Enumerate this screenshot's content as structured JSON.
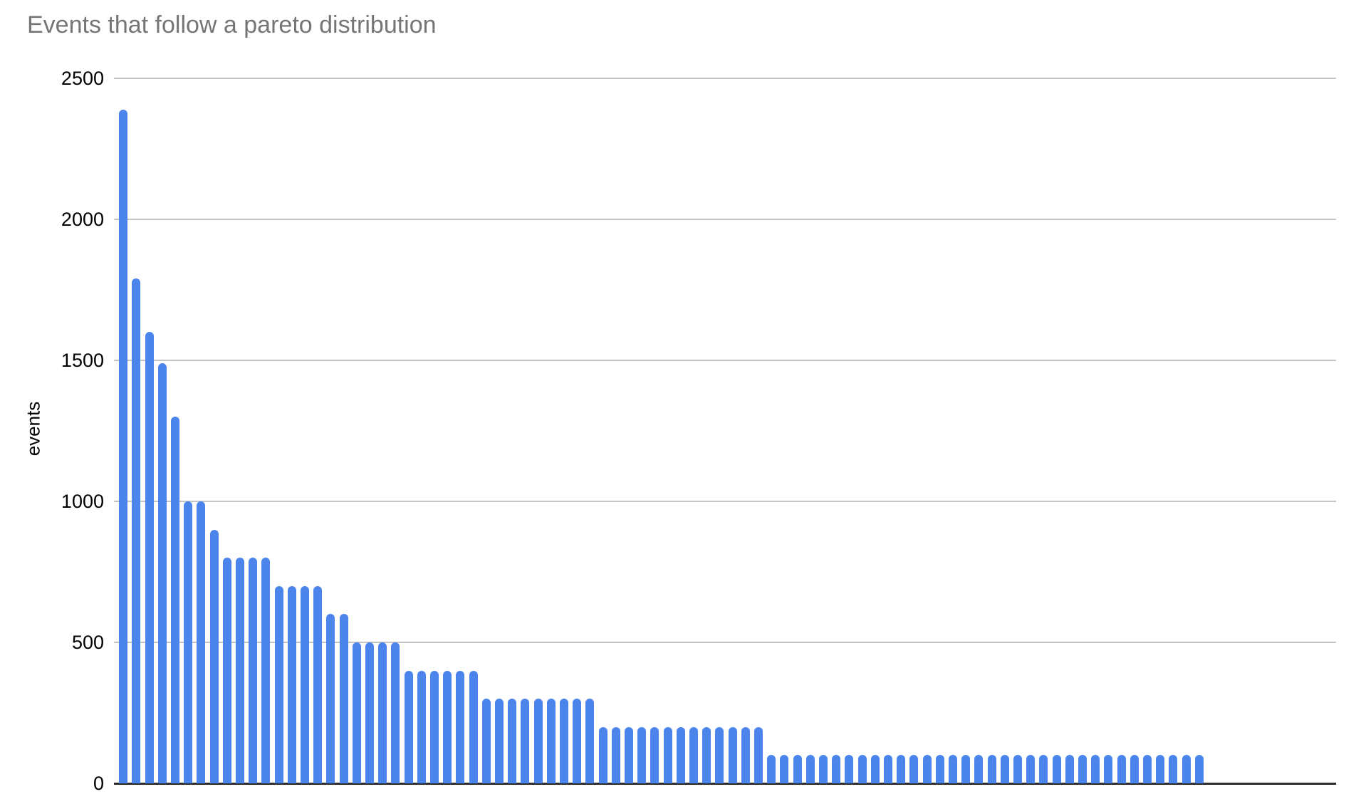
{
  "chart_data": {
    "type": "bar",
    "title": "Events that follow a pareto distribution",
    "xlabel": "",
    "ylabel": "events",
    "ylim": [
      0,
      2500
    ],
    "yticks": [
      0,
      500,
      1000,
      1500,
      2000,
      2500
    ],
    "x_tick_labels": [],
    "grid": true,
    "legend_position": "none",
    "bar_count": 84,
    "values": [
      2390,
      1790,
      1600,
      1490,
      1300,
      1000,
      1000,
      900,
      800,
      800,
      800,
      800,
      700,
      700,
      700,
      700,
      600,
      600,
      500,
      500,
      500,
      500,
      400,
      400,
      400,
      400,
      400,
      400,
      300,
      300,
      300,
      300,
      300,
      300,
      300,
      300,
      300,
      200,
      200,
      200,
      200,
      200,
      200,
      200,
      200,
      200,
      200,
      200,
      200,
      200,
      100,
      100,
      100,
      100,
      100,
      100,
      100,
      100,
      100,
      100,
      100,
      100,
      100,
      100,
      100,
      100,
      100,
      100,
      100,
      100,
      100,
      100,
      100,
      100,
      100,
      100,
      100,
      100,
      100,
      100,
      100,
      100,
      100,
      100
    ],
    "colors": {
      "bar": "#4b85ec",
      "title": "#757575",
      "tick_label": "#000000",
      "gridline": "#c4c4c4",
      "axis_line": "#2c2c2c",
      "background": "#ffffff"
    }
  }
}
